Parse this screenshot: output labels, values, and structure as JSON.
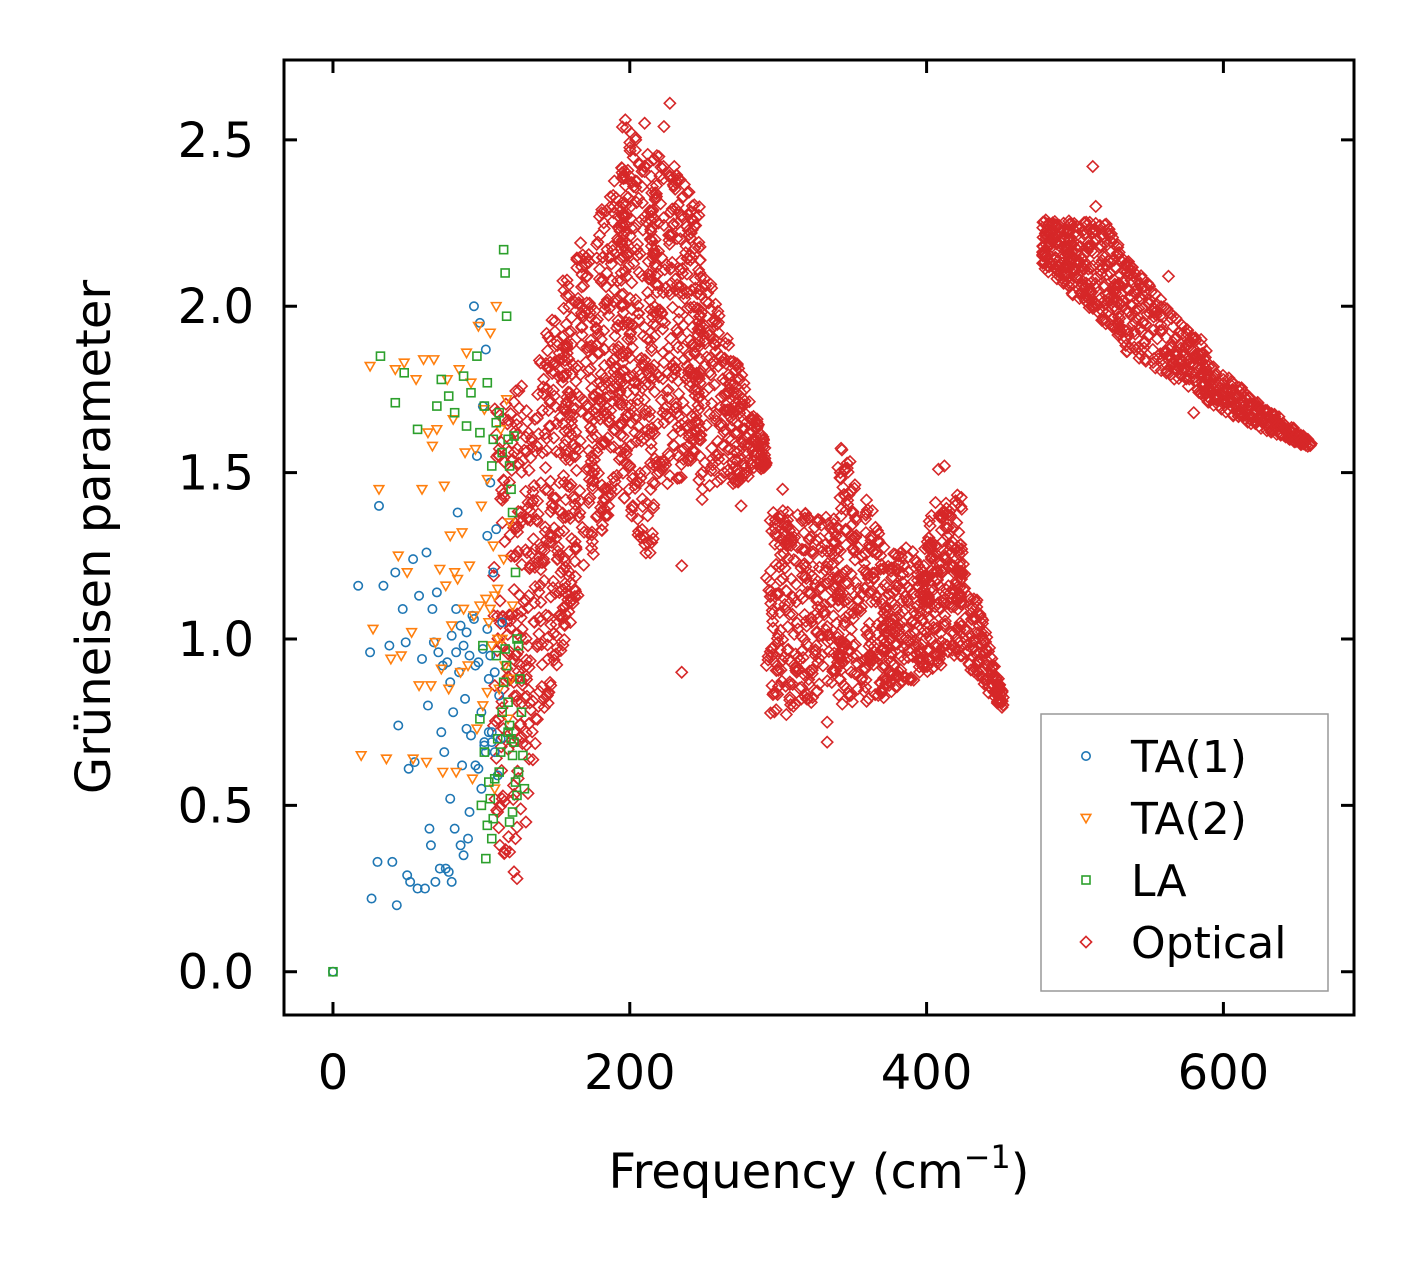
{
  "chart_data": {
    "type": "scatter",
    "title": "",
    "xlabel": "Frequency (cm",
    "xlabel_sup": "−1",
    "xlabel_close": ")",
    "ylabel": "Grüneisen parameter",
    "xlim": [
      -33,
      688
    ],
    "ylim": [
      -0.13,
      2.74
    ],
    "xticks": [
      0,
      200,
      400,
      600
    ],
    "xtick_labels": [
      "0",
      "200",
      "400",
      "600"
    ],
    "yticks": [
      0.0,
      0.5,
      1.0,
      1.5,
      2.0,
      2.5
    ],
    "ytick_labels": [
      "0.0",
      "0.5",
      "1.0",
      "1.5",
      "2.0",
      "2.5"
    ],
    "grid": false,
    "legend_position": "bottom-right",
    "series": [
      {
        "name": "TA(1)",
        "marker": "circle",
        "color": "#1f77b4",
        "points": [
          [
            0,
            0.0
          ],
          [
            17,
            1.16
          ],
          [
            25,
            0.96
          ],
          [
            26,
            0.22
          ],
          [
            30,
            0.33
          ],
          [
            31,
            1.4
          ],
          [
            34,
            1.16
          ],
          [
            38,
            0.98
          ],
          [
            40,
            0.33
          ],
          [
            42,
            1.2
          ],
          [
            43,
            0.2
          ],
          [
            44,
            0.74
          ],
          [
            47,
            1.09
          ],
          [
            49,
            0.99
          ],
          [
            50,
            0.29
          ],
          [
            51,
            0.61
          ],
          [
            52,
            0.27
          ],
          [
            54,
            1.24
          ],
          [
            55,
            0.63
          ],
          [
            57,
            0.25
          ],
          [
            58,
            1.13
          ],
          [
            60,
            0.94
          ],
          [
            62,
            0.25
          ],
          [
            63,
            1.26
          ],
          [
            64,
            0.8
          ],
          [
            65,
            0.43
          ],
          [
            66,
            0.38
          ],
          [
            67,
            1.09
          ],
          [
            68,
            0.99
          ],
          [
            69,
            0.27
          ],
          [
            70,
            1.14
          ],
          [
            71,
            0.96
          ],
          [
            72,
            0.31
          ],
          [
            73,
            0.72
          ],
          [
            74,
            0.92
          ],
          [
            75,
            0.66
          ],
          [
            76,
            0.31
          ],
          [
            77,
            0.93
          ],
          [
            78,
            0.3
          ],
          [
            79,
            0.52
          ],
          [
            80,
            0.27
          ],
          [
            80,
            1.01
          ],
          [
            81,
            0.78
          ],
          [
            82,
            0.43
          ],
          [
            83,
            1.09
          ],
          [
            84,
            1.38
          ],
          [
            85,
            0.9
          ],
          [
            86,
            0.38
          ],
          [
            87,
            0.62
          ],
          [
            88,
            0.35
          ],
          [
            89,
            0.82
          ],
          [
            90,
            1.02
          ],
          [
            91,
            0.4
          ],
          [
            92,
            0.48
          ],
          [
            93,
            0.71
          ],
          [
            94,
            1.07
          ],
          [
            95,
            2.0
          ],
          [
            96,
            0.92
          ],
          [
            97,
            1.55
          ],
          [
            98,
            0.61
          ],
          [
            99,
            1.95
          ],
          [
            100,
            0.78
          ],
          [
            101,
            1.7
          ],
          [
            102,
            0.68
          ],
          [
            103,
            1.87
          ],
          [
            104,
            1.31
          ],
          [
            105,
            0.88
          ],
          [
            106,
            1.47
          ],
          [
            107,
            0.72
          ],
          [
            108,
            1.2
          ],
          [
            109,
            0.66
          ],
          [
            110,
            1.33
          ],
          [
            111,
            0.59
          ],
          [
            112,
            0.83
          ],
          [
            113,
            0.7
          ],
          [
            114,
            1.05
          ],
          [
            92,
            0.95
          ],
          [
            95,
            1.06
          ],
          [
            98,
            0.93
          ],
          [
            101,
            0.97
          ],
          [
            104,
            1.03
          ],
          [
            106,
            0.95
          ],
          [
            109,
            0.9
          ],
          [
            103,
            0.66
          ],
          [
            105,
            0.72
          ],
          [
            107,
            0.69
          ],
          [
            88,
            0.98
          ],
          [
            86,
            1.04
          ],
          [
            90,
            0.73
          ],
          [
            79,
            0.87
          ],
          [
            83,
            0.96
          ],
          [
            96,
            0.62
          ],
          [
            100,
            0.55
          ],
          [
            102,
            0.69
          ]
        ]
      },
      {
        "name": "TA(2)",
        "marker": "triangle-down",
        "color": "#ff7f0e",
        "points": [
          [
            19,
            0.65
          ],
          [
            25,
            1.82
          ],
          [
            27,
            1.03
          ],
          [
            31,
            1.45
          ],
          [
            36,
            0.64
          ],
          [
            39,
            0.94
          ],
          [
            42,
            1.81
          ],
          [
            44,
            1.25
          ],
          [
            46,
            0.95
          ],
          [
            48,
            1.83
          ],
          [
            50,
            1.2
          ],
          [
            53,
            1.02
          ],
          [
            54,
            0.64
          ],
          [
            56,
            1.78
          ],
          [
            58,
            0.86
          ],
          [
            60,
            1.45
          ],
          [
            61,
            1.84
          ],
          [
            63,
            0.63
          ],
          [
            64,
            1.62
          ],
          [
            66,
            0.86
          ],
          [
            67,
            1.58
          ],
          [
            68,
            1.84
          ],
          [
            69,
            0.99
          ],
          [
            70,
            1.63
          ],
          [
            72,
            1.21
          ],
          [
            73,
            0.91
          ],
          [
            74,
            0.6
          ],
          [
            75,
            1.46
          ],
          [
            76,
            1.16
          ],
          [
            77,
            1.78
          ],
          [
            78,
            0.85
          ],
          [
            79,
            1.31
          ],
          [
            80,
            1.04
          ],
          [
            81,
            1.66
          ],
          [
            82,
            1.2
          ],
          [
            83,
            0.6
          ],
          [
            84,
            1.18
          ],
          [
            85,
            1.81
          ],
          [
            86,
            0.9
          ],
          [
            87,
            1.32
          ],
          [
            88,
            1.09
          ],
          [
            89,
            1.56
          ],
          [
            90,
            1.86
          ],
          [
            91,
            0.92
          ],
          [
            92,
            1.22
          ],
          [
            93,
            1.77
          ],
          [
            94,
            0.58
          ],
          [
            95,
            1.07
          ],
          [
            96,
            1.57
          ],
          [
            97,
            0.73
          ],
          [
            98,
            1.94
          ],
          [
            99,
            1.1
          ],
          [
            100,
            1.4
          ],
          [
            101,
            0.8
          ],
          [
            102,
            1.69
          ],
          [
            103,
            1.12
          ],
          [
            104,
            1.48
          ],
          [
            105,
            1.05
          ],
          [
            106,
            1.92
          ],
          [
            107,
            0.98
          ],
          [
            108,
            1.28
          ],
          [
            109,
            0.55
          ],
          [
            110,
            2.0
          ],
          [
            111,
            1.15
          ],
          [
            112,
            0.85
          ],
          [
            113,
            1.63
          ],
          [
            114,
            1.0
          ],
          [
            115,
            1.24
          ],
          [
            116,
            0.92
          ],
          [
            117,
            1.72
          ],
          [
            118,
            0.76
          ],
          [
            119,
            1.35
          ],
          [
            120,
            0.88
          ],
          [
            121,
            1.1
          ],
          [
            104,
            0.84
          ],
          [
            106,
            1.09
          ],
          [
            109,
            1.13
          ],
          [
            111,
            1.0
          ]
        ]
      },
      {
        "name": "LA",
        "marker": "square",
        "color": "#2ca02c",
        "points": [
          [
            0,
            0.0
          ],
          [
            32,
            1.85
          ],
          [
            42,
            1.71
          ],
          [
            48,
            1.8
          ],
          [
            57,
            1.63
          ],
          [
            70,
            1.7
          ],
          [
            73,
            1.78
          ],
          [
            78,
            1.73
          ],
          [
            82,
            1.68
          ],
          [
            88,
            1.79
          ],
          [
            90,
            1.64
          ],
          [
            93,
            1.74
          ],
          [
            97,
            1.85
          ],
          [
            99,
            1.62
          ],
          [
            102,
            1.7
          ],
          [
            104,
            1.77
          ],
          [
            107,
            1.52
          ],
          [
            108,
            1.6
          ],
          [
            110,
            1.65
          ],
          [
            112,
            1.68
          ],
          [
            114,
            1.56
          ],
          [
            115,
            2.17
          ],
          [
            116,
            2.1
          ],
          [
            117,
            1.97
          ],
          [
            118,
            1.6
          ],
          [
            119,
            1.52
          ],
          [
            120,
            1.45
          ],
          [
            121,
            1.38
          ],
          [
            122,
            1.61
          ],
          [
            123,
            1.2
          ],
          [
            124,
            1.0
          ],
          [
            125,
            0.98
          ],
          [
            126,
            0.88
          ],
          [
            127,
            0.78
          ],
          [
            128,
            0.65
          ],
          [
            129,
            0.55
          ],
          [
            118,
            0.72
          ],
          [
            120,
            0.7
          ],
          [
            121,
            0.65
          ],
          [
            119,
            0.74
          ],
          [
            122,
            0.69
          ],
          [
            117,
            0.92
          ],
          [
            116,
            0.97
          ],
          [
            115,
            0.87
          ],
          [
            114,
            0.78
          ],
          [
            113,
            0.66
          ],
          [
            112,
            0.6
          ],
          [
            111,
            0.7
          ],
          [
            110,
            0.95
          ],
          [
            109,
            0.58
          ],
          [
            108,
            0.46
          ],
          [
            107,
            0.4
          ],
          [
            106,
            0.52
          ],
          [
            105,
            0.57
          ],
          [
            104,
            0.44
          ],
          [
            103,
            0.34
          ],
          [
            102,
            0.66
          ],
          [
            101,
            0.98
          ],
          [
            100,
            0.5
          ],
          [
            99,
            0.76
          ],
          [
            123,
            0.57
          ],
          [
            124,
            0.53
          ],
          [
            125,
            0.6
          ],
          [
            121,
            0.48
          ],
          [
            119,
            0.45
          ],
          [
            118,
            0.81
          ]
        ]
      },
      {
        "name": "Optical",
        "marker": "diamond",
        "color": "#d62728",
        "bands": [
          {
            "x0": 108,
            "x1": 132,
            "lo0": 0.28,
            "lo1": 0.5,
            "hi0": 1.7,
            "hi1": 1.78,
            "n": 160
          },
          {
            "x0": 130,
            "x1": 158,
            "lo0": 0.55,
            "lo1": 1.02,
            "hi0": 1.74,
            "hi1": 2.12,
            "n": 230
          },
          {
            "x0": 156,
            "x1": 196,
            "lo0": 1.02,
            "lo1": 1.5,
            "hi0": 2.1,
            "hi1": 2.45,
            "n": 360
          },
          {
            "x0": 194,
            "x1": 216,
            "lo0": 1.45,
            "lo1": 1.18,
            "hi0": 2.56,
            "hi1": 2.45,
            "n": 230
          },
          {
            "x0": 214,
            "x1": 248,
            "lo0": 1.38,
            "lo1": 1.55,
            "hi0": 2.5,
            "hi1": 2.3,
            "n": 300
          },
          {
            "x0": 246,
            "x1": 292,
            "lo0": 1.4,
            "lo1": 1.52,
            "hi0": 2.18,
            "hi1": 1.58,
            "n": 260
          },
          {
            "x0": 292,
            "x1": 342,
            "lo0": 0.74,
            "lo1": 0.85,
            "hi0": 1.4,
            "hi1": 1.36,
            "n": 300
          },
          {
            "x0": 340,
            "x1": 372,
            "lo0": 0.8,
            "lo1": 0.82,
            "hi0": 1.62,
            "hi1": 1.3,
            "n": 220
          },
          {
            "x0": 370,
            "x1": 402,
            "lo0": 0.82,
            "lo1": 0.9,
            "hi0": 1.25,
            "hi1": 1.3,
            "n": 200
          },
          {
            "x0": 400,
            "x1": 424,
            "lo0": 0.9,
            "lo1": 0.95,
            "hi0": 1.36,
            "hi1": 1.45,
            "n": 170
          },
          {
            "x0": 422,
            "x1": 452,
            "lo0": 0.95,
            "lo1": 0.78,
            "hi0": 1.3,
            "hi1": 0.84,
            "n": 140
          },
          {
            "x0": 478,
            "x1": 530,
            "lo0": 2.12,
            "lo1": 1.9,
            "hi0": 2.26,
            "hi1": 2.25,
            "n": 300
          },
          {
            "x0": 528,
            "x1": 590,
            "lo0": 1.88,
            "lo1": 1.72,
            "hi0": 2.18,
            "hi1": 1.86,
            "n": 260
          },
          {
            "x0": 588,
            "x1": 660,
            "lo0": 1.7,
            "lo1": 1.57,
            "hi0": 1.84,
            "hi1": 1.59,
            "n": 240
          }
        ],
        "outliers": [
          [
            197,
            2.56
          ],
          [
            201,
            2.52
          ],
          [
            204,
            2.5
          ],
          [
            210,
            2.55
          ],
          [
            216,
            2.44
          ],
          [
            223,
            2.54
          ],
          [
            227,
            2.61
          ],
          [
            230,
            2.42
          ],
          [
            234,
            2.38
          ],
          [
            236,
            2.33
          ],
          [
            512,
            2.42
          ],
          [
            514,
            2.3
          ],
          [
            563,
            2.09
          ],
          [
            580,
            1.68
          ],
          [
            585,
            1.9
          ],
          [
            235,
            1.22
          ],
          [
            235,
            0.9
          ],
          [
            160,
            1.05
          ],
          [
            333,
            0.69
          ],
          [
            333,
            0.75
          ],
          [
            408,
            1.51
          ],
          [
            412,
            1.52
          ],
          [
            406,
            1.41
          ],
          [
            122,
            0.3
          ],
          [
            124,
            0.28
          ],
          [
            119,
            0.36
          ],
          [
            123,
            0.4
          ],
          [
            275,
            1.4
          ],
          [
            303,
            1.45
          ],
          [
            130,
            0.45
          ]
        ]
      }
    ]
  }
}
